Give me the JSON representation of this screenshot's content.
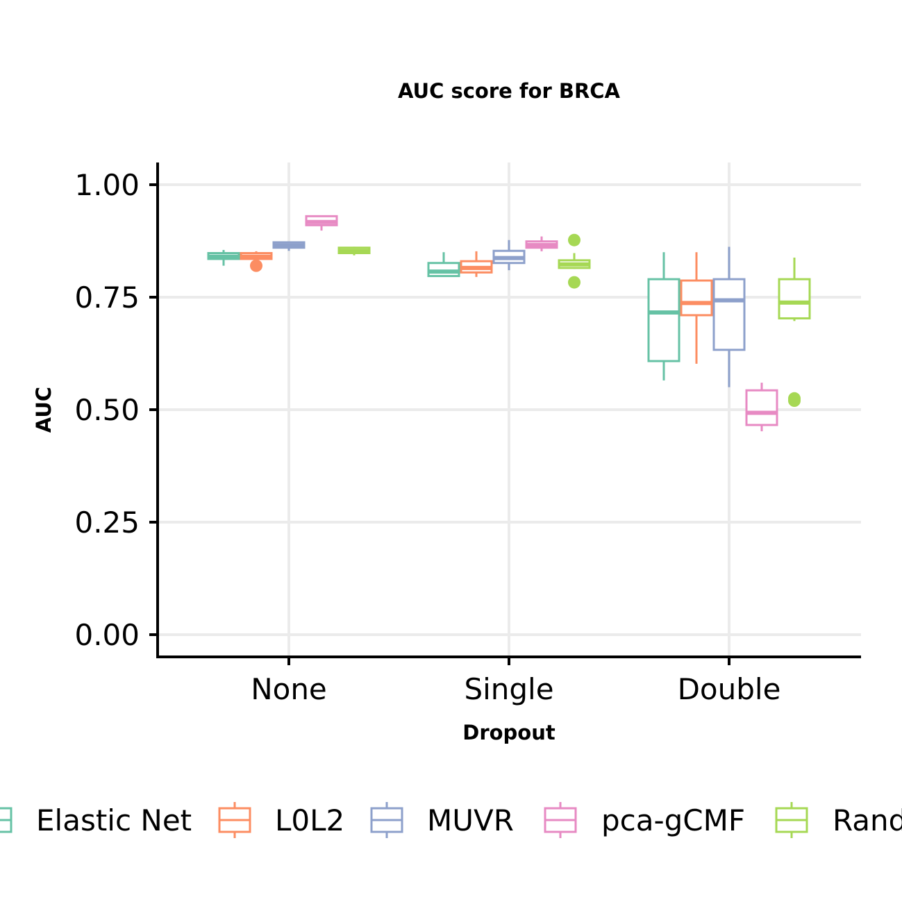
{
  "chart_data": {
    "type": "boxplot",
    "title": "AUC score for BRCA",
    "xlabel": "Dropout",
    "ylabel": "AUC",
    "ylim": [
      -0.05,
      1.05
    ],
    "yticks": [
      "0.00",
      "0.25",
      "0.50",
      "0.75",
      "1.00"
    ],
    "ytick_values": [
      0,
      0.25,
      0.5,
      0.75,
      1.0
    ],
    "categories": [
      "None",
      "Single",
      "Double"
    ],
    "grid": true,
    "legend_position": "bottom",
    "series": [
      {
        "name": "Elastic Net",
        "color": "#66c2a5",
        "boxes": [
          {
            "min": 0.82,
            "q1": 0.835,
            "median": 0.84,
            "q3": 0.848,
            "max": 0.855,
            "outliers": []
          },
          {
            "min": 0.795,
            "q1": 0.797,
            "median": 0.807,
            "q3": 0.826,
            "max": 0.85,
            "outliers": []
          },
          {
            "min": 0.565,
            "q1": 0.608,
            "median": 0.716,
            "q3": 0.79,
            "max": 0.85,
            "outliers": []
          }
        ]
      },
      {
        "name": "L0L2",
        "color": "#fc8d62",
        "boxes": [
          {
            "min": 0.833,
            "q1": 0.835,
            "median": 0.84,
            "q3": 0.848,
            "max": 0.852,
            "outliers": [
              0.82
            ]
          },
          {
            "min": 0.795,
            "q1": 0.805,
            "median": 0.815,
            "q3": 0.83,
            "max": 0.852,
            "outliers": []
          },
          {
            "min": 0.602,
            "q1": 0.71,
            "median": 0.737,
            "q3": 0.787,
            "max": 0.85,
            "outliers": []
          }
        ]
      },
      {
        "name": "MUVR",
        "color": "#8da0cb",
        "boxes": [
          {
            "min": 0.853,
            "q1": 0.86,
            "median": 0.865,
            "q3": 0.872,
            "max": 0.874,
            "outliers": []
          },
          {
            "min": 0.81,
            "q1": 0.826,
            "median": 0.837,
            "q3": 0.853,
            "max": 0.877,
            "outliers": []
          },
          {
            "min": 0.55,
            "q1": 0.633,
            "median": 0.743,
            "q3": 0.79,
            "max": 0.862,
            "outliers": []
          }
        ]
      },
      {
        "name": "pca-gCMF",
        "color": "#e78ac3",
        "boxes": [
          {
            "min": 0.898,
            "q1": 0.91,
            "median": 0.917,
            "q3": 0.93,
            "max": 0.932,
            "outliers": []
          },
          {
            "min": 0.852,
            "q1": 0.86,
            "median": 0.866,
            "q3": 0.874,
            "max": 0.885,
            "outliers": []
          },
          {
            "min": 0.452,
            "q1": 0.466,
            "median": 0.493,
            "q3": 0.543,
            "max": 0.56,
            "outliers": []
          }
        ]
      },
      {
        "name": "Random Forest",
        "color": "#a6d854",
        "boxes": [
          {
            "min": 0.843,
            "q1": 0.848,
            "median": 0.853,
            "q3": 0.86,
            "max": 0.862,
            "outliers": []
          },
          {
            "min": 0.813,
            "q1": 0.815,
            "median": 0.823,
            "q3": 0.832,
            "max": 0.848,
            "outliers": [
              0.877,
              0.783
            ]
          },
          {
            "min": 0.697,
            "q1": 0.703,
            "median": 0.738,
            "q3": 0.79,
            "max": 0.838,
            "outliers": [
              0.52,
              0.525
            ]
          }
        ]
      }
    ]
  }
}
